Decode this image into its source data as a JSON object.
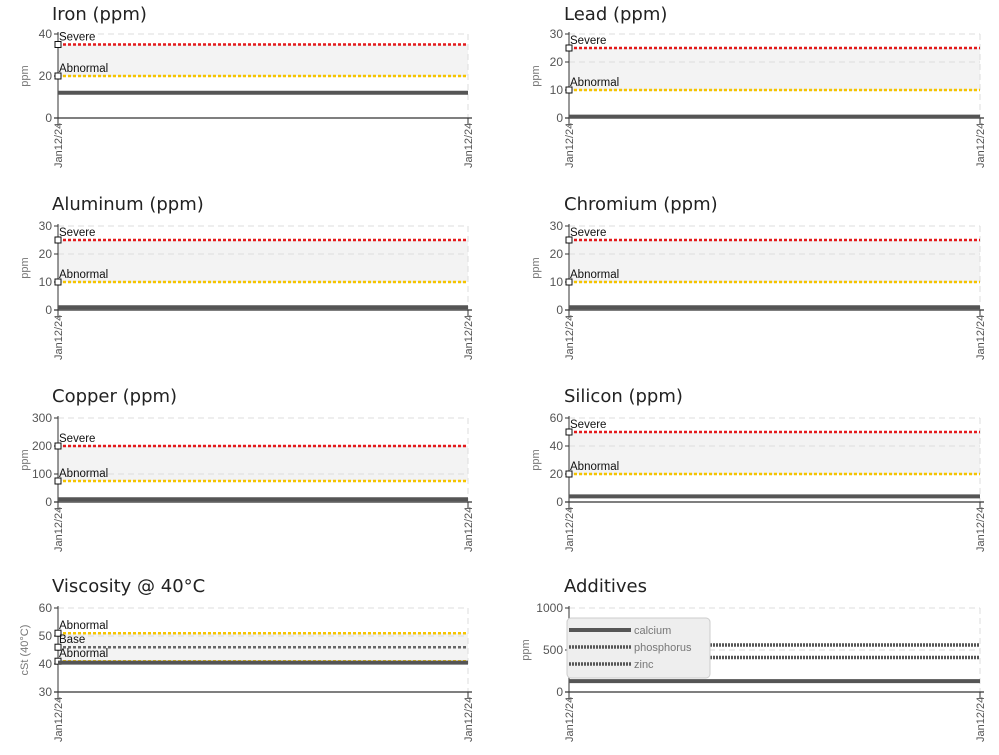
{
  "chart_data": [
    {
      "title": "Iron (ppm)",
      "type": "line",
      "ylabel": "ppm",
      "ylim": [
        0,
        40
      ],
      "ticks": [
        "0",
        "20",
        "40"
      ],
      "x": [
        "Jan12/24",
        "Jan12/24"
      ],
      "band": [
        20,
        35
      ],
      "thresholds": [
        {
          "label": "Severe",
          "value": 35,
          "color": "#e31a1c"
        },
        {
          "label": "Abnormal",
          "value": 20,
          "color": "#f5c400"
        }
      ],
      "series": [
        {
          "values": [
            12,
            12
          ],
          "color": "#555555"
        }
      ]
    },
    {
      "title": "Lead (ppm)",
      "type": "line",
      "ylabel": "ppm",
      "ylim": [
        0,
        30
      ],
      "ticks": [
        "0",
        "10",
        "20",
        "30"
      ],
      "x": [
        "Jan12/24",
        "Jan12/24"
      ],
      "band": [
        10,
        25
      ],
      "thresholds": [
        {
          "label": "Severe",
          "value": 25,
          "color": "#e31a1c"
        },
        {
          "label": "Abnormal",
          "value": 10,
          "color": "#f5c400"
        }
      ],
      "series": [
        {
          "values": [
            0.5,
            0.5
          ],
          "color": "#555555"
        }
      ]
    },
    {
      "title": "Aluminum (ppm)",
      "type": "line",
      "ylabel": "ppm",
      "ylim": [
        0,
        30
      ],
      "ticks": [
        "0",
        "10",
        "20",
        "30"
      ],
      "x": [
        "Jan12/24",
        "Jan12/24"
      ],
      "band": [
        10,
        25
      ],
      "thresholds": [
        {
          "label": "Severe",
          "value": 25,
          "color": "#e31a1c"
        },
        {
          "label": "Abnormal",
          "value": 10,
          "color": "#f5c400"
        }
      ],
      "series": [
        {
          "values": [
            1,
            1
          ],
          "color": "#555555"
        }
      ]
    },
    {
      "title": "Chromium (ppm)",
      "type": "line",
      "ylabel": "ppm",
      "ylim": [
        0,
        30
      ],
      "ticks": [
        "0",
        "10",
        "20",
        "30"
      ],
      "x": [
        "Jan12/24",
        "Jan12/24"
      ],
      "band": [
        10,
        25
      ],
      "thresholds": [
        {
          "label": "Severe",
          "value": 25,
          "color": "#e31a1c"
        },
        {
          "label": "Abnormal",
          "value": 10,
          "color": "#f5c400"
        }
      ],
      "series": [
        {
          "values": [
            1,
            1
          ],
          "color": "#555555"
        }
      ]
    },
    {
      "title": "Copper (ppm)",
      "type": "line",
      "ylabel": "ppm",
      "ylim": [
        0,
        300
      ],
      "ticks": [
        "0",
        "100",
        "200",
        "300"
      ],
      "x": [
        "Jan12/24",
        "Jan12/24"
      ],
      "band": [
        75,
        200
      ],
      "thresholds": [
        {
          "label": "Severe",
          "value": 200,
          "color": "#e31a1c"
        },
        {
          "label": "Abnormal",
          "value": 75,
          "color": "#f5c400"
        }
      ],
      "series": [
        {
          "values": [
            10,
            10
          ],
          "color": "#555555"
        }
      ]
    },
    {
      "title": "Silicon (ppm)",
      "type": "line",
      "ylabel": "ppm",
      "ylim": [
        0,
        60
      ],
      "ticks": [
        "0",
        "20",
        "40",
        "60"
      ],
      "x": [
        "Jan12/24",
        "Jan12/24"
      ],
      "band": [
        20,
        50
      ],
      "thresholds": [
        {
          "label": "Severe",
          "value": 50,
          "color": "#e31a1c"
        },
        {
          "label": "Abnormal",
          "value": 20,
          "color": "#f5c400"
        }
      ],
      "series": [
        {
          "values": [
            4,
            4
          ],
          "color": "#555555"
        }
      ]
    },
    {
      "title": "Viscosity @ 40°C",
      "type": "line",
      "ylabel": "cSt (40°C)",
      "ylim": [
        30,
        60
      ],
      "ticks": [
        "30",
        "40",
        "50",
        "60"
      ],
      "x": [
        "Jan12/24",
        "Jan12/24"
      ],
      "band": [
        41,
        51
      ],
      "thresholds": [
        {
          "label": "Abnormal",
          "value": 51,
          "color": "#f5c400"
        },
        {
          "label": "Base",
          "value": 46,
          "color": "#666666"
        },
        {
          "label": "Abnormal",
          "value": 41,
          "color": "#f5c400"
        }
      ],
      "series": [
        {
          "values": [
            40.5,
            40.5
          ],
          "color": "#555555"
        }
      ]
    },
    {
      "title": "Additives",
      "type": "line",
      "ylabel": "ppm",
      "ylim": [
        0,
        1000
      ],
      "ticks": [
        "0",
        "500",
        "1000"
      ],
      "x": [
        "Jan12/24",
        "Jan12/24"
      ],
      "band": null,
      "thresholds": [],
      "series": [
        {
          "name": "calcium",
          "values": [
            130,
            130
          ],
          "color": "#555555",
          "style": "solid"
        },
        {
          "name": "phosphorus",
          "values": [
            560,
            560
          ],
          "color": "#555555",
          "style": "dotted"
        },
        {
          "name": "zinc",
          "values": [
            410,
            410
          ],
          "color": "#555555",
          "style": "dotted"
        }
      ],
      "legend": [
        "calcium",
        "phosphorus",
        "zinc"
      ]
    }
  ]
}
